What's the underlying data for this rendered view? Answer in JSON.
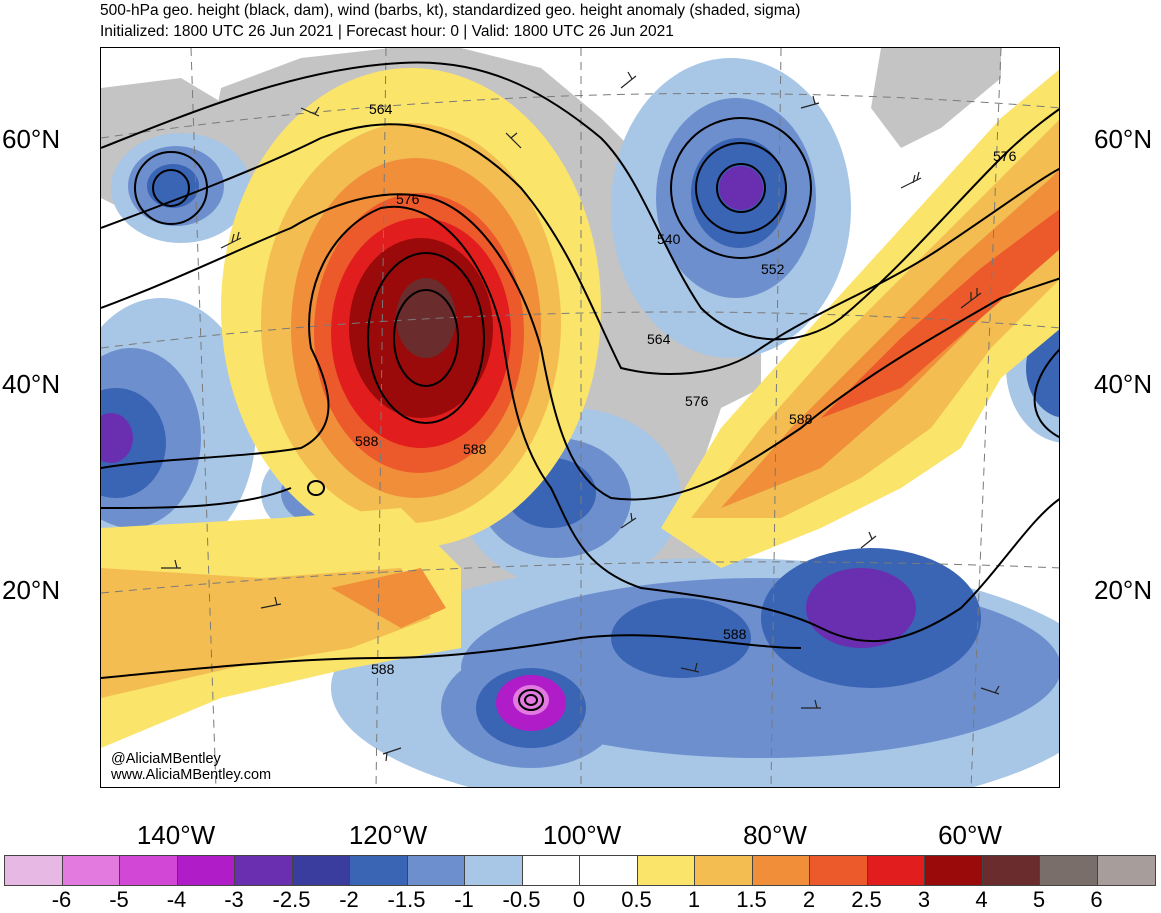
{
  "header": {
    "title": "500-hPa geo. height (black, dam), wind (barbs, kt), standardized geo. height anomaly (shaded, sigma)",
    "subtitle": "Initialized: 1800 UTC 26 Jun 2021 | Forecast hour: 0 | Valid: 1800 UTC 26 Jun 2021"
  },
  "map": {
    "lat_labels_left": [
      "60°N",
      "40°N",
      "20°N"
    ],
    "lat_labels_right": [
      "60°N",
      "40°N",
      "20°N"
    ],
    "lon_labels": [
      "140°W",
      "120°W",
      "100°W",
      "80°W",
      "60°W"
    ],
    "contour_labels": [
      "564",
      "576",
      "588",
      "588",
      "540",
      "552",
      "564",
      "576",
      "588",
      "576",
      "588",
      "588"
    ],
    "credit_handle": "@AliciaMBentley",
    "credit_url": "www.AliciaMBentley.com"
  },
  "colorbar": {
    "ticks": [
      "-6",
      "-5",
      "-4",
      "-3",
      "-2.5",
      "-2",
      "-1.5",
      "-1",
      "-0.5",
      "0",
      "0.5",
      "1",
      "1.5",
      "2",
      "2.5",
      "3",
      "4",
      "5",
      "6"
    ],
    "colors": [
      "#e8b8e4",
      "#e27ae0",
      "#d347d6",
      "#b01cc8",
      "#6a2fb0",
      "#3a3c9e",
      "#3a64b4",
      "#6d8fce",
      "#a8c6e6",
      "#ffffff",
      "#ffffff",
      "#fbe46a",
      "#f3bd52",
      "#f08e3a",
      "#ec5a2c",
      "#e21d1d",
      "#9a0a0a",
      "#6a2c2c",
      "#7a6e6a",
      "#a79e9c"
    ]
  }
}
